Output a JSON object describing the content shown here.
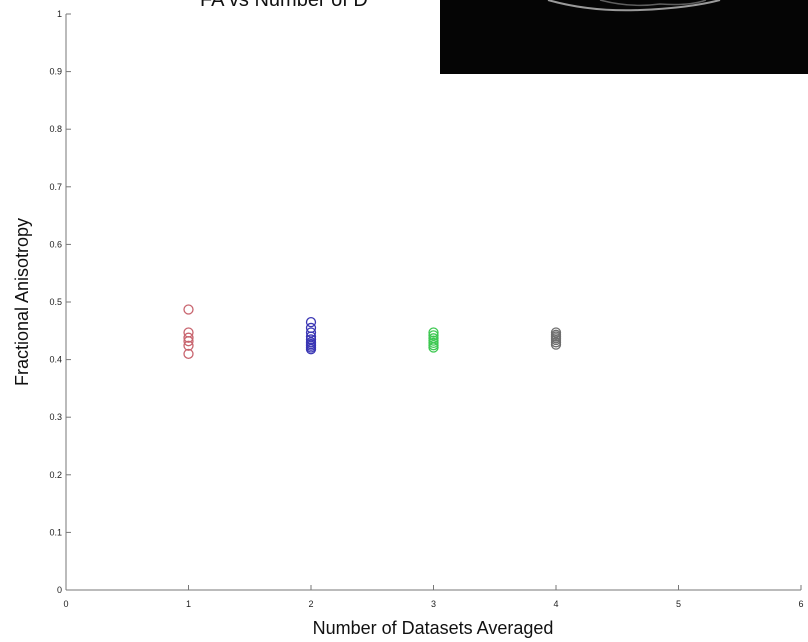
{
  "chart_data": {
    "type": "scatter",
    "title": "FA vs Number of D",
    "xlabel": "Number of Datasets Averaged",
    "ylabel": "Fractional Anisotropy",
    "xlim": [
      0,
      6
    ],
    "ylim": [
      0,
      1
    ],
    "x_ticks": [
      "0",
      "1",
      "2",
      "3",
      "4",
      "5",
      "6"
    ],
    "y_ticks": [
      "0",
      "0.1",
      "0.2",
      "0.3",
      "0.4",
      "0.5",
      "0.6",
      "0.7",
      "0.8",
      "0.9",
      "1"
    ],
    "grid": false,
    "series": [
      {
        "color": "#c8646e",
        "x": [
          1,
          1,
          1,
          1,
          1,
          1
        ],
        "y": [
          0.487,
          0.447,
          0.438,
          0.432,
          0.424,
          0.41
        ]
      },
      {
        "color": "#3a36b4",
        "x": [
          2,
          2,
          2,
          2,
          2,
          2,
          2,
          2,
          2,
          2
        ],
        "y": [
          0.465,
          0.455,
          0.447,
          0.44,
          0.435,
          0.43,
          0.427,
          0.424,
          0.421,
          0.418
        ]
      },
      {
        "color": "#3cc850",
        "x": [
          3,
          3,
          3,
          3,
          3,
          3,
          3
        ],
        "y": [
          0.447,
          0.442,
          0.437,
          0.433,
          0.429,
          0.425,
          0.421
        ]
      },
      {
        "color": "#6e6e6e",
        "x": [
          4,
          4,
          4,
          4,
          4,
          4,
          4
        ],
        "y": [
          0.447,
          0.443,
          0.44,
          0.437,
          0.434,
          0.43,
          0.426
        ]
      }
    ]
  },
  "inset_image": {
    "description_icon": "mri-brain-slice-icon"
  }
}
